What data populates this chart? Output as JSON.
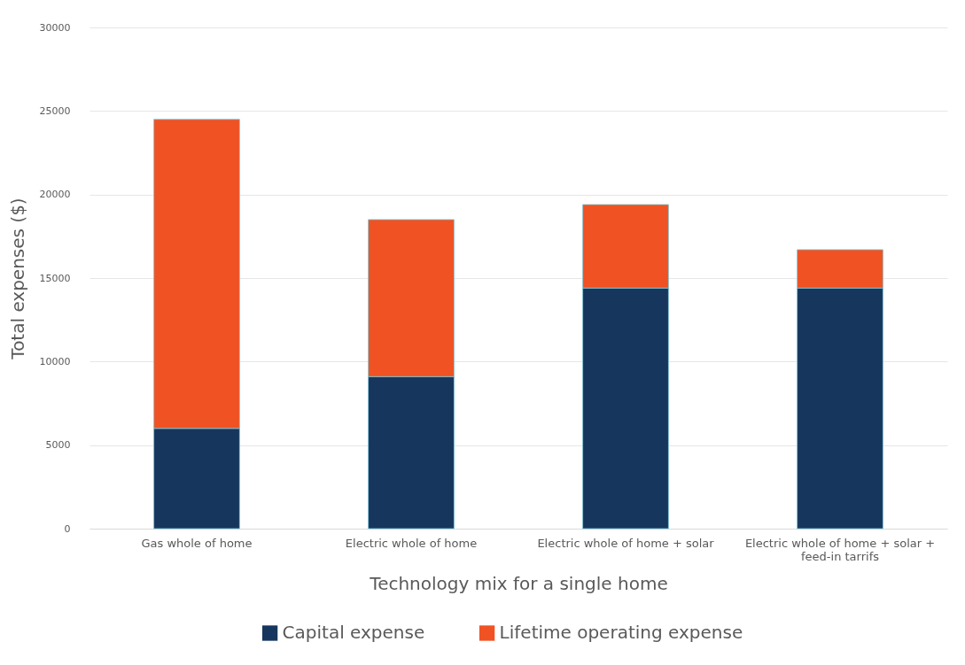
{
  "chart_data": {
    "type": "bar",
    "stacked": true,
    "categories": [
      "Gas whole of home",
      "Electric whole of home",
      "Electric whole of home + solar",
      "Electric whole of home + solar + feed-in tarrifs"
    ],
    "series": [
      {
        "name": "Capital expense",
        "color": "#17365d",
        "values": [
          6000,
          9100,
          14400,
          14400
        ]
      },
      {
        "name": "Lifetime operating expense",
        "color": "#f05223",
        "values": [
          18500,
          9400,
          5000,
          2300
        ]
      }
    ],
    "xlabel": "Technology mix for a single home",
    "ylabel": "Total expenses ($)",
    "ylim": [
      0,
      30000
    ],
    "yticks": [
      0,
      5000,
      10000,
      15000,
      20000,
      25000,
      30000
    ],
    "grid": "y",
    "legend": "bottom"
  }
}
